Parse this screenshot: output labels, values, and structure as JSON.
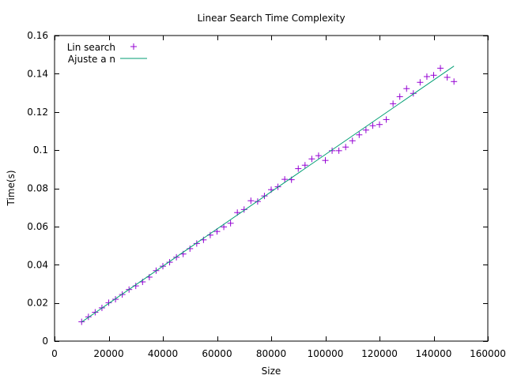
{
  "chart_data": {
    "type": "scatter",
    "title": "Linear Search Time Complexity",
    "xlabel": "Size",
    "ylabel": "Time(s)",
    "xlim": [
      0,
      160000
    ],
    "ylim": [
      0,
      0.16
    ],
    "xticks": [
      0,
      20000,
      40000,
      60000,
      80000,
      100000,
      120000,
      140000,
      160000
    ],
    "xtick_labels": [
      "0",
      "20000",
      "40000",
      "60000",
      "80000",
      "100000",
      "120000",
      "140000",
      "160000"
    ],
    "yticks": [
      0,
      0.02,
      0.04,
      0.06,
      0.08,
      0.1,
      0.12,
      0.14,
      0.16
    ],
    "ytick_labels": [
      "0",
      "0.02",
      "0.04",
      "0.06",
      "0.08",
      "0.1",
      "0.12",
      "0.14",
      "0.16"
    ],
    "grid": false,
    "legend_position": "top-left",
    "series": [
      {
        "name": "Lin search",
        "kind": "points",
        "marker": "plus",
        "color": "#9400d3",
        "x": [
          10000,
          12500,
          15000,
          17500,
          20000,
          22500,
          25000,
          27500,
          30000,
          32500,
          35000,
          37500,
          40000,
          42500,
          45000,
          47500,
          50000,
          52500,
          55000,
          57500,
          60000,
          62500,
          65000,
          67500,
          70000,
          72500,
          75000,
          77500,
          80000,
          82500,
          85000,
          87500,
          90000,
          92500,
          95000,
          97500,
          100000,
          102500,
          105000,
          107500,
          110000,
          112500,
          115000,
          117500,
          120000,
          122500,
          125000,
          127500,
          130000,
          132500,
          135000,
          137500,
          140000,
          142500,
          145000,
          147500
        ],
        "y": [
          0.0101,
          0.0127,
          0.0151,
          0.0174,
          0.0201,
          0.0219,
          0.0244,
          0.027,
          0.0289,
          0.031,
          0.0335,
          0.0369,
          0.0392,
          0.0413,
          0.0439,
          0.0456,
          0.0484,
          0.0511,
          0.053,
          0.0555,
          0.0574,
          0.0598,
          0.0617,
          0.0673,
          0.0689,
          0.0735,
          0.0731,
          0.076,
          0.0793,
          0.0808,
          0.0847,
          0.0845,
          0.0903,
          0.0921,
          0.0954,
          0.0971,
          0.0946,
          0.0997,
          0.0997,
          0.1016,
          0.1049,
          0.108,
          0.1105,
          0.1128,
          0.1134,
          0.116,
          0.1243,
          0.128,
          0.1322,
          0.1297,
          0.1355,
          0.1385,
          0.1392,
          0.1429,
          0.1381,
          0.1359
        ]
      },
      {
        "name": "Ajuste a n",
        "kind": "line",
        "color": "#009e73",
        "x": [
          10000,
          147500
        ],
        "y": [
          0.01,
          0.144
        ]
      }
    ]
  }
}
